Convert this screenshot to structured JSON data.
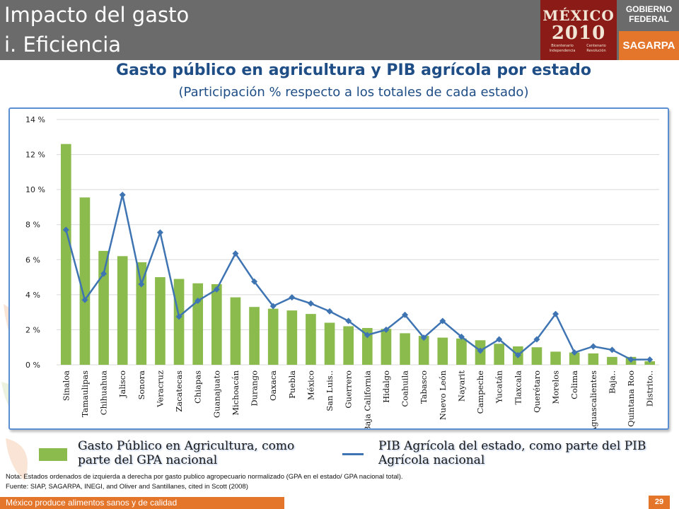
{
  "header": {
    "title_line1": "Impacto del gasto",
    "title_line2": "i. Eficiencia",
    "logo_mexico": "MÉXICO",
    "logo_year": "2010",
    "logo_left_caption": "Bicentenario Independencia",
    "logo_right_caption": "Centenario Revolución",
    "gov_line1": "Gobierno",
    "gov_line2": "Federal",
    "agency": "SAGARPA"
  },
  "colors": {
    "header_gray": "#6b6b6b",
    "accent_orange": "#e4762c",
    "title_blue": "#1f4e86",
    "bar_green": "#8bbb4c",
    "line_blue": "#3f74b3"
  },
  "chart_data": {
    "type": "bar",
    "title": "Gasto público en agricultura y PIB agrícola por estado",
    "subtitle": "(Participación % respecto a los totales de cada estado)",
    "categories": [
      "Sinaloa",
      "Tamaulipas",
      "Chihuahua",
      "Jalisco",
      "Sonora",
      "Veracruz",
      "Zacatecas",
      "Chiapas",
      "Guanajuato",
      "Michoacán",
      "Durango",
      "Oaxaca",
      "Puebla",
      "México",
      "San Luis..",
      "Guerrero",
      "Baja California",
      "Hidalgo",
      "Coahuila",
      "Tabasco",
      "Nuevo León",
      "Nayarit",
      "Campeche",
      "Yucatán",
      "Tlaxcala",
      "Querétaro",
      "Morelos",
      "Colima",
      "Aguascalientes",
      "Baja..",
      "Quintana Roo",
      "Distrito.."
    ],
    "series": [
      {
        "name": "Gasto Público en Agricultura, como parte del GPA nacional",
        "kind": "bar",
        "values": [
          12.6,
          9.55,
          6.5,
          6.2,
          5.85,
          5.0,
          4.9,
          4.65,
          4.6,
          3.85,
          3.3,
          3.2,
          3.1,
          2.9,
          2.4,
          2.2,
          2.1,
          2.05,
          1.8,
          1.65,
          1.55,
          1.5,
          1.4,
          1.2,
          1.05,
          1.0,
          0.75,
          0.7,
          0.65,
          0.45,
          0.45,
          0.2
        ]
      },
      {
        "name": "PIB Agrícola del estado, como parte del PIB Agrícola nacional",
        "kind": "line",
        "values": [
          7.7,
          3.7,
          5.2,
          9.7,
          4.6,
          7.55,
          2.75,
          3.65,
          4.3,
          6.35,
          4.75,
          3.35,
          3.85,
          3.5,
          3.05,
          2.5,
          1.7,
          2.0,
          2.85,
          1.55,
          2.5,
          1.6,
          0.8,
          1.45,
          0.55,
          1.45,
          2.9,
          0.7,
          1.05,
          0.85,
          0.3,
          0.3
        ]
      }
    ],
    "ylim": [
      0,
      14
    ],
    "y_ticks": [
      "0 %",
      "2 %",
      "4 %",
      "6 %",
      "8 %",
      "10 %",
      "12 %",
      "14 %"
    ],
    "grid": true,
    "legend_position": "bottom"
  },
  "legend": {
    "bar_label": "Gasto Público en Agricultura, como parte del GPA nacional",
    "line_label": "PIB Agrícola del estado, como parte del PIB Agrícola nacional"
  },
  "note": "Nota: Estados ordenados de izquierda a derecha por gasto publico agropecuario normalizado (GPA en el estado/ GPA nacional total).",
  "source": "Fuente: SIAP, SAGARPA, INEGI, and Oliver and Santillanes, cited in Scott (2008)",
  "footer": {
    "slogan": "México produce alimentos sanos y de calidad",
    "page": "29"
  }
}
